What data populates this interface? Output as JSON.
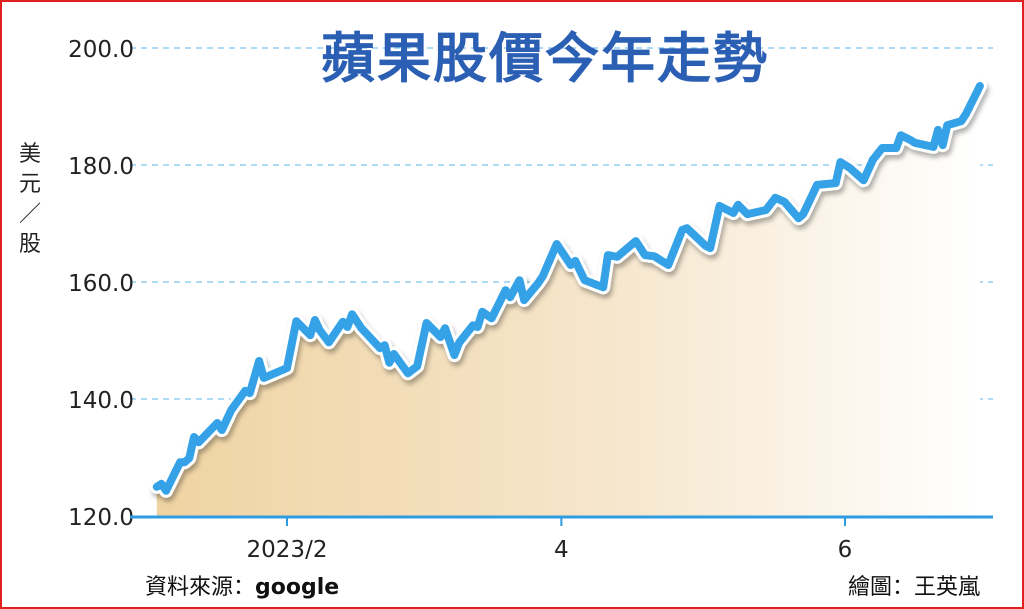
{
  "chart_data": {
    "type": "area",
    "title": "蘋果股價今年走勢",
    "ylabel": "美元／股",
    "xlabel": "",
    "ylim": [
      120,
      200
    ],
    "yticks": [
      "120.0",
      "140.0",
      "160.0",
      "180.0",
      "200.0"
    ],
    "ytick_values": [
      120,
      140,
      160,
      180,
      200
    ],
    "xticks": [
      {
        "label": "2023/2",
        "date": "2023-02-01"
      },
      {
        "label": "4",
        "date": "2023-04-01"
      },
      {
        "label": "6",
        "date": "2023-06-01"
      }
    ],
    "grid": "horizontal dashed",
    "colors": {
      "line": "#36a2e8",
      "fill_start": "#efd3a2",
      "fill_end": "#ffffff",
      "title": "#2b5fb4",
      "axis": "#2f9be0",
      "grid": "#7cc3ee",
      "border": "#e02020"
    },
    "series": [
      {
        "x": [
          "2023-01-04",
          "2023-01-05",
          "2023-01-06",
          "2023-01-09",
          "2023-01-10",
          "2023-01-11",
          "2023-01-12",
          "2023-01-13",
          "2023-01-17",
          "2023-01-18",
          "2023-01-20",
          "2023-01-23",
          "2023-01-24",
          "2023-01-26",
          "2023-01-27",
          "2023-02-01",
          "2023-02-03",
          "2023-02-06",
          "2023-02-07",
          "2023-02-08",
          "2023-02-10",
          "2023-02-13",
          "2023-02-14",
          "2023-02-15",
          "2023-02-17",
          "2023-02-21",
          "2023-02-22",
          "2023-02-23",
          "2023-02-24",
          "2023-02-27",
          "2023-03-01",
          "2023-03-03",
          "2023-03-06",
          "2023-03-07",
          "2023-03-09",
          "2023-03-10",
          "2023-03-13",
          "2023-03-14",
          "2023-03-15",
          "2023-03-17",
          "2023-03-20",
          "2023-03-21",
          "2023-03-23",
          "2023-03-24",
          "2023-03-27",
          "2023-03-28",
          "2023-03-31",
          "2023-04-03",
          "2023-04-04",
          "2023-04-06",
          "2023-04-10",
          "2023-04-11",
          "2023-04-13",
          "2023-04-17",
          "2023-04-19",
          "2023-04-21",
          "2023-04-24",
          "2023-04-27",
          "2023-04-28",
          "2023-05-02",
          "2023-05-03",
          "2023-05-05",
          "2023-05-08",
          "2023-05-09",
          "2023-05-11",
          "2023-05-15",
          "2023-05-17",
          "2023-05-19",
          "2023-05-22",
          "2023-05-23",
          "2023-05-26",
          "2023-05-30",
          "2023-05-31",
          "2023-06-02",
          "2023-06-05",
          "2023-06-07",
          "2023-06-09",
          "2023-06-12",
          "2023-06-13",
          "2023-06-15",
          "2023-06-16",
          "2023-06-20",
          "2023-06-21",
          "2023-06-22",
          "2023-06-23",
          "2023-06-26",
          "2023-06-27",
          "2023-06-30"
        ],
        "values": [
          125.0,
          125.5,
          124.3,
          129.2,
          129.2,
          129.9,
          133.5,
          132.6,
          135.9,
          134.7,
          138.1,
          141.4,
          141.0,
          146.5,
          143.6,
          145.3,
          153.3,
          150.9,
          153.5,
          151.8,
          149.7,
          153.2,
          152.3,
          154.5,
          152.1,
          148.7,
          149.2,
          146.2,
          147.7,
          144.4,
          145.6,
          153.0,
          150.6,
          152.1,
          147.5,
          149.6,
          152.6,
          152.3,
          154.9,
          153.8,
          158.6,
          157.4,
          160.3,
          156.9,
          159.8,
          161.0,
          166.5,
          162.9,
          163.6,
          160.3,
          159.1,
          164.6,
          164.3,
          167.0,
          164.6,
          164.4,
          162.9,
          168.9,
          169.2,
          166.2,
          165.8,
          173.0,
          171.8,
          173.2,
          171.6,
          172.3,
          174.4,
          173.7,
          170.9,
          171.6,
          176.6,
          176.9,
          180.5,
          179.5,
          177.4,
          180.9,
          182.9,
          182.9,
          185.1,
          184.3,
          183.8,
          183.1,
          186.0,
          183.4,
          186.8,
          187.5,
          188.7,
          193.5
        ]
      }
    ]
  },
  "footer": {
    "source_label": "資料來源：",
    "source_value": "google",
    "credit": "繪圖：王英嵐"
  }
}
